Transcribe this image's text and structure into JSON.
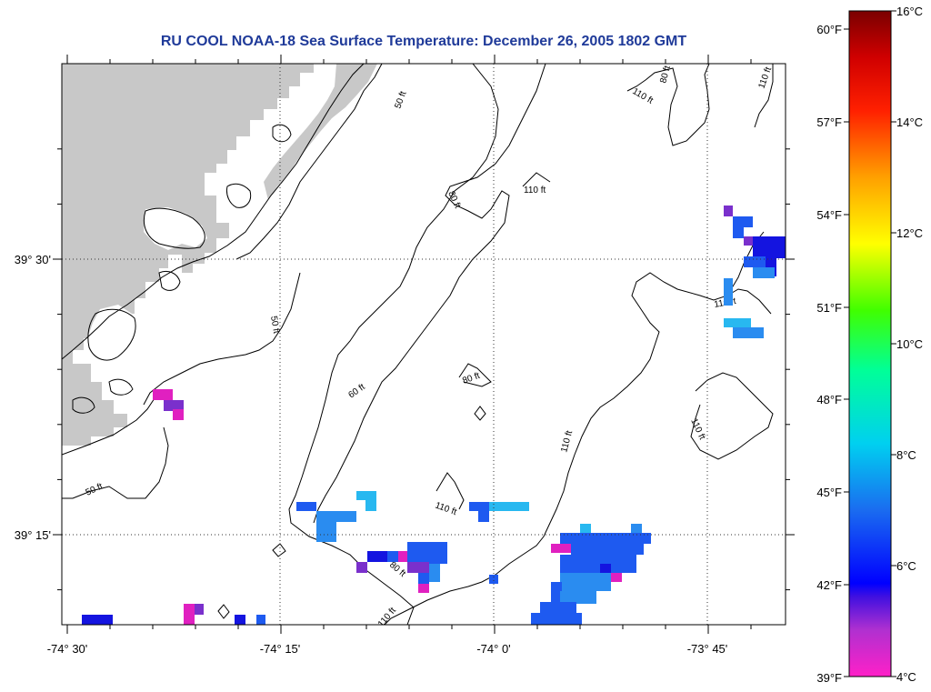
{
  "title": "RU COOL  NOAA-18  Sea Surface Temperature:  December 26, 2005 1802 GMT",
  "axes": {
    "x_labels": [
      "-74° 30'",
      "-74° 15'",
      "-74° 0'",
      "-73° 45'"
    ],
    "y_labels": [
      "39° 30'",
      "39° 15'"
    ]
  },
  "contours": {
    "labels": [
      "50 ft",
      "50 ft",
      "50 ft",
      "60 ft",
      "80 ft",
      "80 ft",
      "80 ft",
      "110 ft",
      "110 ft",
      "110 ft",
      "110 ft",
      "110 ft",
      "110 ft",
      "110 ft",
      "80 ft",
      "110 ft"
    ]
  },
  "colorbar": {
    "fahrenheit": [
      "60°F",
      "57°F",
      "54°F",
      "51°F",
      "48°F",
      "45°F",
      "42°F",
      "39°F"
    ],
    "celsius": [
      "16°C",
      "14°C",
      "12°C",
      "10°C",
      "8°C",
      "6°C",
      "4°C"
    ],
    "stops": [
      "#e020c0",
      "#ff40d0",
      "#8030d0",
      "#0000ff",
      "#1a6cf0",
      "#00d8f0",
      "#00ff90",
      "#40ff00",
      "#ffff00",
      "#ffa000",
      "#ff2000",
      "#c00000",
      "#7a0000"
    ]
  },
  "colors": {
    "land": "#c8c8c8",
    "title": "#1f3a99",
    "sst_magenta": "#e020c0",
    "sst_purple": "#7a30cc",
    "sst_darkblue": "#1414e0",
    "sst_blue": "#1e5af0",
    "sst_medblue": "#2a8cf0",
    "sst_cyan": "#28b8f0"
  }
}
